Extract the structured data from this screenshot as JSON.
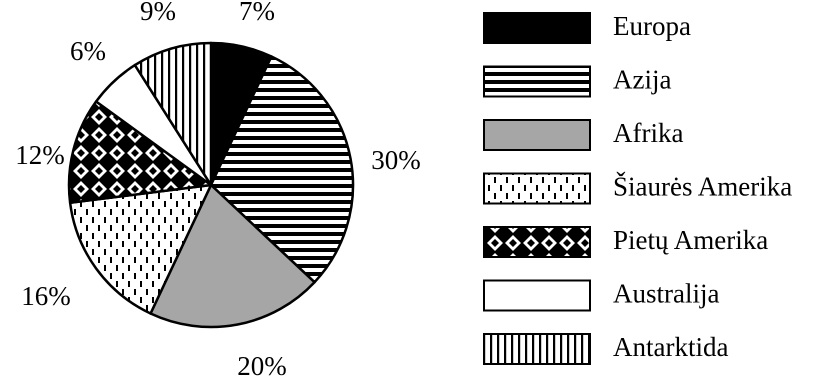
{
  "chart_data": {
    "type": "pie",
    "title": "",
    "slices": [
      {
        "name": "Europa",
        "value": 7,
        "label": "7%",
        "pattern": "solid-black"
      },
      {
        "name": "Azija",
        "value": 30,
        "label": "30%",
        "pattern": "horizontal-stripes"
      },
      {
        "name": "Afrika",
        "value": 20,
        "label": "20%",
        "pattern": "solid-gray"
      },
      {
        "name": "Šiaurės Amerika",
        "value": 16,
        "label": "16%",
        "pattern": "dashed-vertical"
      },
      {
        "name": "Pietų Amerika",
        "value": 12,
        "label": "12%",
        "pattern": "diamond-checker"
      },
      {
        "name": "Australija",
        "value": 6,
        "label": "6%",
        "pattern": "solid-white"
      },
      {
        "name": "Antarktida",
        "value": 9,
        "label": "9%",
        "pattern": "vertical-stripes"
      }
    ],
    "start_angle_deg": 0,
    "direction": "clockwise",
    "legend_position": "right",
    "colors": {
      "black": "#000000",
      "gray": "#a6a6a6",
      "white": "#ffffff"
    }
  }
}
